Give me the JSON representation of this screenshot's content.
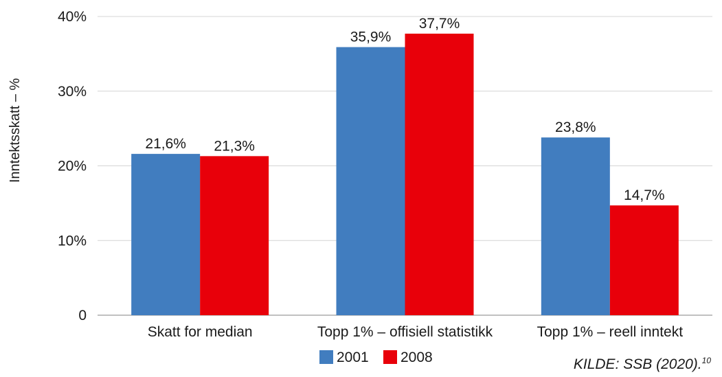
{
  "chart_data": {
    "type": "bar",
    "categories": [
      "Skatt for median",
      "Topp 1% – offisiell statistikk",
      "Topp 1% – reell inntekt"
    ],
    "series": [
      {
        "name": "2001",
        "color": "#417dbf",
        "values": [
          21.6,
          35.9,
          23.8
        ],
        "labels": [
          "21,6%",
          "35,9%",
          "23,8%"
        ]
      },
      {
        "name": "2008",
        "color": "#e8000a",
        "values": [
          21.3,
          37.7,
          14.7
        ],
        "labels": [
          "21,3%",
          "37,7%",
          "14,7%"
        ]
      }
    ],
    "ylabel": "Inntektsskatt – %",
    "ylim": [
      0,
      40
    ],
    "yticks": [
      0,
      10,
      20,
      30,
      40
    ],
    "ytick_labels": [
      "0",
      "10%",
      "20%",
      "30%",
      "40%"
    ],
    "grid": true,
    "legend_position": "bottom-center"
  },
  "source": {
    "text": "KILDE:  SSB (2020).",
    "note": "10"
  }
}
